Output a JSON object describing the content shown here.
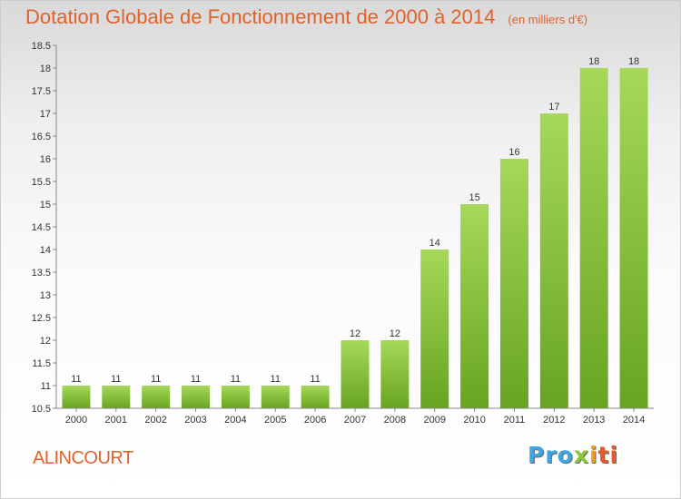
{
  "chart_data": {
    "type": "bar",
    "title": "Dotation Globale de Fonctionnement de 2000 à 2014",
    "unit": "(en milliers d'€)",
    "categories": [
      "2000",
      "2001",
      "2002",
      "2003",
      "2004",
      "2005",
      "2006",
      "2007",
      "2008",
      "2009",
      "2010",
      "2011",
      "2012",
      "2013",
      "2014"
    ],
    "values": [
      11,
      11,
      11,
      11,
      11,
      11,
      11,
      12,
      12,
      14,
      15,
      16,
      17,
      18,
      18
    ],
    "value_labels": [
      "11",
      "11",
      "11",
      "11",
      "11",
      "11",
      "11",
      "12",
      "12",
      "14",
      "15",
      "16",
      "17",
      "18",
      "18"
    ],
    "ylim": [
      10.5,
      18.5
    ],
    "yticks": [
      "10.5",
      "11",
      "11.5",
      "12",
      "12.5",
      "13",
      "13.5",
      "14",
      "14.5",
      "15",
      "15.5",
      "16",
      "16.5",
      "17",
      "17.5",
      "18",
      "18.5"
    ],
    "grid": false,
    "bar_color": "#8cc63f"
  },
  "footer": {
    "town": "ALINCOURT"
  },
  "logo": {
    "text": "Proxiti",
    "letters": [
      "Pro",
      "x",
      "i",
      "ti"
    ]
  }
}
